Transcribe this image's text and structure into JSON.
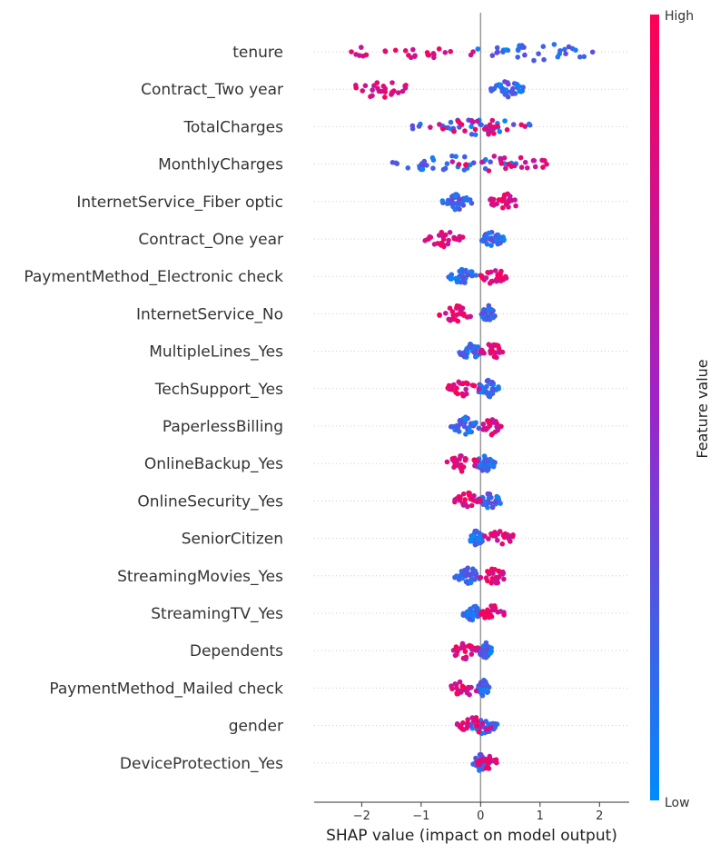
{
  "chart_data": {
    "type": "scatter",
    "subtype": "shap-beeswarm",
    "title": "",
    "xlabel": "SHAP value (impact on model output)",
    "ylabel": "",
    "xlim": [
      -2.8,
      2.5
    ],
    "xticks": [
      -2,
      -1,
      0,
      1,
      2
    ],
    "xtick_labels": [
      "−2",
      "−1",
      "0",
      "1",
      "2"
    ],
    "colorbar": {
      "label": "Feature value",
      "high_label": "High",
      "low_label": "Low",
      "high_color": "#ff0052",
      "low_color": "#008bfb"
    },
    "features": [
      {
        "name": "tenure",
        "low_range": [
          -0.4,
          2.3
        ],
        "high_range": [
          -2.6,
          0.3
        ]
      },
      {
        "name": "Contract_Two year",
        "low_range": [
          0.15,
          0.75
        ],
        "high_range": [
          -2.35,
          -1.05
        ]
      },
      {
        "name": "TotalCharges",
        "low_range": [
          -1.2,
          1.0
        ],
        "high_range": [
          -0.9,
          0.9
        ]
      },
      {
        "name": "MonthlyCharges",
        "low_range": [
          -1.7,
          0.7
        ],
        "high_range": [
          -0.6,
          1.3
        ]
      },
      {
        "name": "InternetService_Fiber optic",
        "low_range": [
          -0.65,
          -0.15
        ],
        "high_range": [
          0.1,
          0.7
        ]
      },
      {
        "name": "Contract_One year",
        "low_range": [
          0.0,
          0.4
        ],
        "high_range": [
          -0.95,
          -0.25
        ]
      },
      {
        "name": "PaymentMethod_Electronic check",
        "low_range": [
          -0.55,
          -0.05
        ],
        "high_range": [
          0.0,
          0.45
        ]
      },
      {
        "name": "InternetService_No",
        "low_range": [
          0.0,
          0.25
        ],
        "high_range": [
          -0.75,
          -0.1
        ]
      },
      {
        "name": "MultipleLines_Yes",
        "low_range": [
          -0.4,
          0.05
        ],
        "high_range": [
          0.0,
          0.4
        ]
      },
      {
        "name": "TechSupport_Yes",
        "low_range": [
          -0.1,
          0.35
        ],
        "high_range": [
          -0.6,
          0.0
        ]
      },
      {
        "name": "PaperlessBilling",
        "low_range": [
          -0.5,
          0.0
        ],
        "high_range": [
          0.0,
          0.35
        ]
      },
      {
        "name": "OnlineBackup_Yes",
        "low_range": [
          -0.1,
          0.25
        ],
        "high_range": [
          -0.6,
          0.0
        ]
      },
      {
        "name": "OnlineSecurity_Yes",
        "low_range": [
          -0.05,
          0.35
        ],
        "high_range": [
          -0.45,
          0.0
        ]
      },
      {
        "name": "SeniorCitizen",
        "low_range": [
          -0.2,
          0.05
        ],
        "high_range": [
          0.05,
          0.65
        ]
      },
      {
        "name": "StreamingMovies_Yes",
        "low_range": [
          -0.45,
          0.05
        ],
        "high_range": [
          0.0,
          0.45
        ]
      },
      {
        "name": "StreamingTV_Yes",
        "low_range": [
          -0.3,
          0.05
        ],
        "high_range": [
          0.0,
          0.4
        ]
      },
      {
        "name": "Dependents",
        "low_range": [
          -0.05,
          0.2
        ],
        "high_range": [
          -0.55,
          0.0
        ]
      },
      {
        "name": "PaymentMethod_Mailed check",
        "low_range": [
          -0.05,
          0.15
        ],
        "high_range": [
          -0.55,
          0.0
        ]
      },
      {
        "name": "gender",
        "low_range": [
          -0.2,
          0.3
        ],
        "high_range": [
          -0.4,
          0.2
        ]
      },
      {
        "name": "DeviceProtection_Yes",
        "low_range": [
          -0.15,
          0.15
        ],
        "high_range": [
          -0.05,
          0.3
        ]
      }
    ]
  }
}
